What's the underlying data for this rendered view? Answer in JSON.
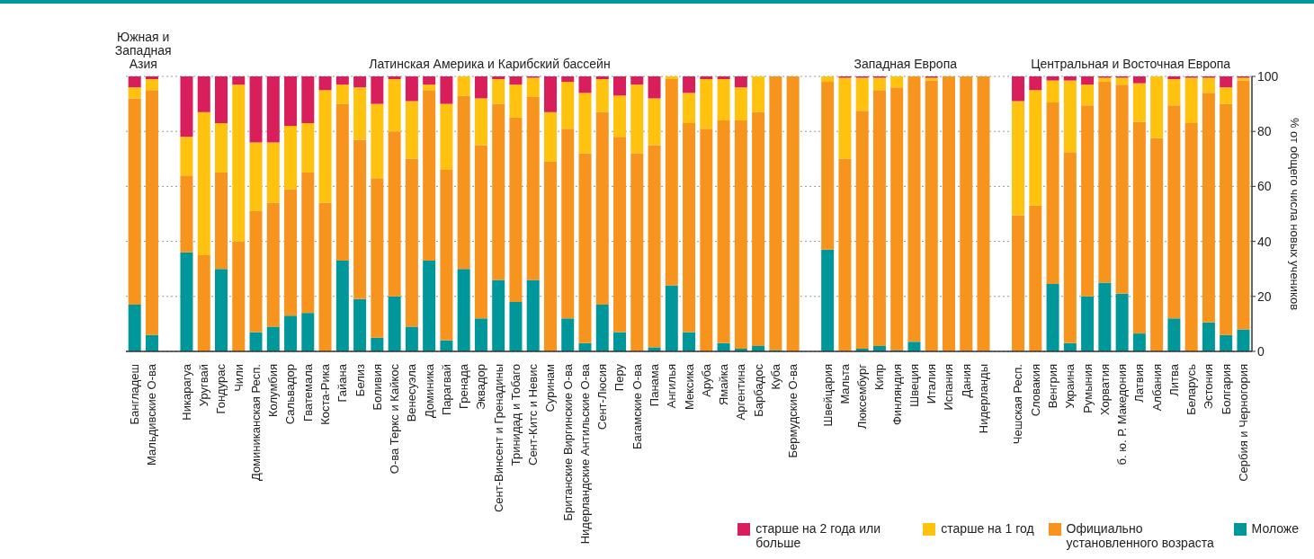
{
  "chart_data": {
    "type": "bar",
    "stacked": true,
    "ylabel": "% от общего числа новых учеников",
    "annotations": [
      "Южная и Западная Азия",
      "Латинская Америка и Карибский бассейн",
      "Западная Европа",
      "Центральная и Восточная Европа"
    ],
    "categories": [
      "Бангладеш",
      "Мальдивские О-ва",
      null,
      "Никарагуа",
      "Уругвай",
      "Гондурас",
      "Чили",
      "Доминиканская Респ.",
      "Колумбия",
      "Сальвадор",
      "Гватемала",
      "Коста-Рика",
      "Гайана",
      "Белиз",
      "Боливия",
      "О-ва Теркс и Кайкос",
      "Венесуэла",
      "Доминика",
      "Парагвай",
      "Гренада",
      "Эквадор",
      "Сент-Винсент и Гренадины",
      "Тринидад и Тобаго",
      "Сент-Китс и Невис",
      "Суринам",
      "Британские Виргинские О-ва",
      "Нидерландские Антильские О-ва",
      "Сент-Люсия",
      "Перу",
      "Багамские О-ва",
      "Панама",
      "Ангилья",
      "Мексика",
      "Аруба",
      "Ямайка",
      "Аргентина",
      "Барбадос",
      "Куба",
      "Бермудские О-ва",
      null,
      "Швейцария",
      "Мальта",
      "Люксембург",
      "Кипр",
      "Финляндия",
      "Швеция",
      "Италия",
      "Испания",
      "Дания",
      "Нидерланды",
      null,
      "Чешская Респ.",
      "Словакия",
      "Венгрия",
      "Украина",
      "Румыния",
      "Хорватия",
      "б. ю. Р. Македония",
      "Латвия",
      "Албания",
      "Литва",
      "Беларусь",
      "Эстония",
      "Болгария",
      "Сербия и Черногория"
    ],
    "series": [
      {
        "name": "Моложе",
        "color": "#00979a",
        "values": [
          17,
          6,
          null,
          36,
          0,
          30,
          0,
          7,
          9,
          13,
          14,
          0,
          33,
          19,
          5,
          20,
          9,
          33,
          4,
          30,
          12,
          26,
          18,
          26,
          0,
          12,
          3,
          17,
          7,
          0,
          1.5,
          24,
          7,
          0,
          3,
          1,
          2,
          0.5,
          0,
          null,
          37,
          0,
          1,
          2,
          0.5,
          3.5,
          0,
          0,
          0,
          0,
          null,
          0,
          0,
          24.5,
          3,
          20,
          25,
          21,
          6.5,
          0,
          12,
          0,
          10.5,
          6,
          8
        ]
      },
      {
        "name": "Официально установленного возраста",
        "color": "#f7941d",
        "values": [
          75,
          89,
          null,
          28,
          35,
          35,
          40,
          44,
          45,
          46,
          51,
          54,
          57,
          58,
          58,
          60,
          61,
          62,
          62,
          63,
          63,
          64,
          67,
          66.5,
          69,
          69,
          69,
          70,
          71,
          72,
          73.5,
          75,
          76,
          81,
          81,
          83,
          85,
          99.5,
          100,
          null,
          61,
          70,
          86.5,
          93,
          95.5,
          96.5,
          98.5,
          100,
          100,
          100,
          null,
          49.5,
          53,
          66,
          69.5,
          69.5,
          73,
          76,
          77,
          77.5,
          77.5,
          83,
          83.5,
          84,
          90.5
        ]
      },
      {
        "name": "старше на 1 год",
        "color": "#ffc20e",
        "values": [
          4,
          4,
          null,
          14,
          52,
          18,
          57,
          25,
          22,
          23,
          18,
          41,
          7,
          19,
          27,
          19,
          21,
          2,
          24,
          7,
          17,
          9,
          12,
          7,
          18,
          17,
          22,
          12,
          15,
          25,
          17,
          1,
          11,
          18,
          15,
          12,
          13,
          0,
          0,
          null,
          2,
          29.5,
          12,
          4.5,
          4,
          0,
          1,
          0,
          0,
          0,
          null,
          41.5,
          42,
          8,
          26,
          7.5,
          1.5,
          2.5,
          14,
          22.5,
          9.5,
          16.5,
          5.5,
          6,
          1
        ]
      },
      {
        "name": "старше на 2 года или больше",
        "color": "#d81e5b",
        "values": [
          4,
          1,
          null,
          22,
          13,
          17,
          3,
          24,
          24,
          18,
          17,
          5,
          3,
          4,
          10,
          1,
          9,
          3,
          10,
          0,
          8,
          1,
          3,
          0.5,
          13,
          2,
          6,
          1,
          7,
          3,
          8,
          0,
          6,
          1,
          1,
          4,
          0,
          0,
          0,
          null,
          0,
          0.5,
          0.5,
          0.5,
          0,
          0,
          0.5,
          0,
          0,
          0,
          null,
          9,
          5,
          1.5,
          1.5,
          3,
          0.5,
          0.5,
          2.5,
          0,
          1,
          0.5,
          0.5,
          4,
          0.5
        ]
      }
    ],
    "ylim": [
      0,
      100
    ],
    "yticks": [
      0,
      20,
      40,
      60,
      80,
      100
    ],
    "grid": "y",
    "legend": "bottom right"
  }
}
